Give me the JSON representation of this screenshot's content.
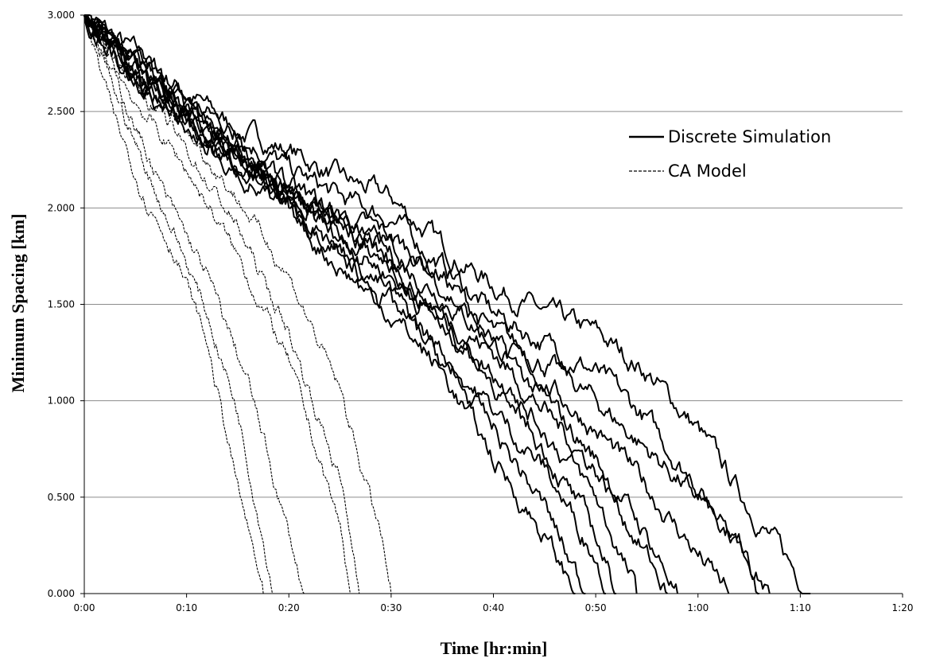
{
  "chart_data": {
    "type": "line",
    "title": "",
    "xlabel": "Time [hr:min]",
    "ylabel": "Minimum Spacing [km]",
    "x_unit": "minutes",
    "xlim": [
      0,
      80
    ],
    "ylim": [
      0,
      3
    ],
    "x_ticks": [
      0,
      10,
      20,
      30,
      40,
      50,
      60,
      70,
      80
    ],
    "x_tick_labels": [
      "0:00",
      "0:10",
      "0:20",
      "0:30",
      "0:40",
      "0:50",
      "1:00",
      "1:10",
      "1:20"
    ],
    "y_ticks": [
      0,
      0.5,
      1,
      1.5,
      2,
      2.5,
      3
    ],
    "y_tick_labels": [
      "0.000",
      "0.500",
      "1.000",
      "1.500",
      "2.000",
      "2.500",
      "3.000"
    ],
    "grid": "horizontal",
    "legend_position": "top-right",
    "legend": [
      {
        "label": "Discrete Simulation",
        "style": "solid"
      },
      {
        "label": "CA Model",
        "style": "dashed"
      }
    ],
    "series": [
      {
        "group": "Discrete Simulation",
        "style": "solid",
        "x": [
          0,
          5,
          10,
          15,
          20,
          25,
          30,
          35,
          40,
          45,
          50,
          55,
          60,
          65,
          70,
          71
        ],
        "y": [
          3.0,
          2.8,
          2.6,
          2.4,
          2.3,
          2.15,
          2.05,
          1.8,
          1.6,
          1.45,
          1.35,
          1.15,
          0.85,
          0.45,
          0.08,
          0.0
        ]
      },
      {
        "group": "Discrete Simulation",
        "style": "solid",
        "x": [
          0,
          5,
          10,
          15,
          20,
          25,
          30,
          35,
          40,
          45,
          50,
          55,
          60,
          65,
          67
        ],
        "y": [
          3.0,
          2.75,
          2.55,
          2.4,
          2.2,
          2.05,
          1.95,
          1.7,
          1.45,
          1.3,
          1.15,
          0.9,
          0.55,
          0.2,
          0.0
        ]
      },
      {
        "group": "Discrete Simulation",
        "style": "solid",
        "x": [
          0,
          5,
          10,
          15,
          20,
          25,
          30,
          35,
          40,
          45,
          50,
          55,
          60,
          65,
          66
        ],
        "y": [
          3.0,
          2.7,
          2.5,
          2.3,
          2.1,
          1.95,
          1.85,
          1.65,
          1.35,
          1.2,
          1.0,
          0.75,
          0.5,
          0.15,
          0.0
        ]
      },
      {
        "group": "Discrete Simulation",
        "style": "solid",
        "x": [
          0,
          5,
          10,
          15,
          20,
          25,
          30,
          35,
          40,
          45,
          50,
          55,
          60,
          63
        ],
        "y": [
          3.0,
          2.7,
          2.45,
          2.25,
          2.05,
          1.9,
          1.75,
          1.55,
          1.3,
          1.1,
          0.85,
          0.55,
          0.2,
          0.0
        ]
      },
      {
        "group": "Discrete Simulation",
        "style": "solid",
        "x": [
          0,
          5,
          10,
          15,
          20,
          25,
          30,
          35,
          40,
          45,
          50,
          55,
          58
        ],
        "y": [
          3.0,
          2.75,
          2.5,
          2.3,
          2.1,
          1.95,
          1.8,
          1.6,
          1.3,
          1.0,
          0.7,
          0.3,
          0.0
        ]
      },
      {
        "group": "Discrete Simulation",
        "style": "solid",
        "x": [
          0,
          5,
          10,
          15,
          20,
          25,
          30,
          35,
          40,
          45,
          50,
          55,
          57
        ],
        "y": [
          3.0,
          2.7,
          2.5,
          2.25,
          2.05,
          1.85,
          1.7,
          1.45,
          1.25,
          0.95,
          0.65,
          0.2,
          0.0
        ]
      },
      {
        "group": "Discrete Simulation",
        "style": "solid",
        "x": [
          0,
          5,
          10,
          15,
          20,
          25,
          30,
          35,
          40,
          45,
          50,
          54
        ],
        "y": [
          3.0,
          2.7,
          2.45,
          2.25,
          2.05,
          1.85,
          1.65,
          1.4,
          1.15,
          0.85,
          0.5,
          0.0
        ]
      },
      {
        "group": "Discrete Simulation",
        "style": "solid",
        "x": [
          0,
          5,
          10,
          15,
          20,
          25,
          30,
          35,
          40,
          45,
          50,
          52
        ],
        "y": [
          3.0,
          2.75,
          2.5,
          2.3,
          2.1,
          1.9,
          1.7,
          1.4,
          1.1,
          0.75,
          0.3,
          0.0
        ]
      },
      {
        "group": "Discrete Simulation",
        "style": "solid",
        "x": [
          0,
          5,
          10,
          15,
          20,
          25,
          30,
          35,
          40,
          45,
          50,
          51
        ],
        "y": [
          3.0,
          2.7,
          2.45,
          2.25,
          2.05,
          1.8,
          1.55,
          1.25,
          0.95,
          0.65,
          0.2,
          0.0
        ]
      },
      {
        "group": "Discrete Simulation",
        "style": "solid",
        "x": [
          0,
          5,
          10,
          15,
          20,
          25,
          30,
          35,
          40,
          45,
          49
        ],
        "y": [
          3.0,
          2.7,
          2.45,
          2.2,
          2.0,
          1.75,
          1.5,
          1.2,
          0.85,
          0.45,
          0.0
        ]
      },
      {
        "group": "Discrete Simulation",
        "style": "solid",
        "x": [
          0,
          5,
          10,
          15,
          20,
          25,
          30,
          35,
          40,
          45,
          48
        ],
        "y": [
          3.0,
          2.65,
          2.4,
          2.2,
          1.95,
          1.7,
          1.45,
          1.15,
          0.7,
          0.3,
          0.0
        ]
      },
      {
        "group": "CA Model",
        "style": "dashed",
        "x": [
          0,
          3,
          6,
          9,
          12,
          15,
          17.5
        ],
        "y": [
          3.0,
          2.45,
          2.05,
          1.75,
          1.3,
          0.55,
          0.0
        ]
      },
      {
        "group": "CA Model",
        "style": "dashed",
        "x": [
          0,
          3,
          6,
          9,
          12,
          15,
          18,
          18.5
        ],
        "y": [
          3.0,
          2.6,
          2.2,
          1.85,
          1.45,
          0.95,
          0.15,
          0.0
        ]
      },
      {
        "group": "CA Model",
        "style": "dashed",
        "x": [
          0,
          4,
          8,
          12,
          16,
          20,
          21.5
        ],
        "y": [
          3.0,
          2.55,
          2.05,
          1.65,
          1.1,
          0.3,
          0.0
        ]
      },
      {
        "group": "CA Model",
        "style": "dashed",
        "x": [
          0,
          5,
          10,
          15,
          20,
          25,
          26
        ],
        "y": [
          3.0,
          2.55,
          2.2,
          1.75,
          1.2,
          0.35,
          0.0
        ]
      },
      {
        "group": "CA Model",
        "style": "dashed",
        "x": [
          0,
          5,
          10,
          15,
          20,
          25,
          27
        ],
        "y": [
          3.0,
          2.65,
          2.3,
          1.9,
          1.35,
          0.6,
          0.0
        ]
      },
      {
        "group": "CA Model",
        "style": "dashed",
        "x": [
          0,
          5,
          10,
          15,
          20,
          25,
          29,
          30
        ],
        "y": [
          3.0,
          2.7,
          2.4,
          2.05,
          1.65,
          1.05,
          0.3,
          0.0
        ]
      }
    ]
  }
}
